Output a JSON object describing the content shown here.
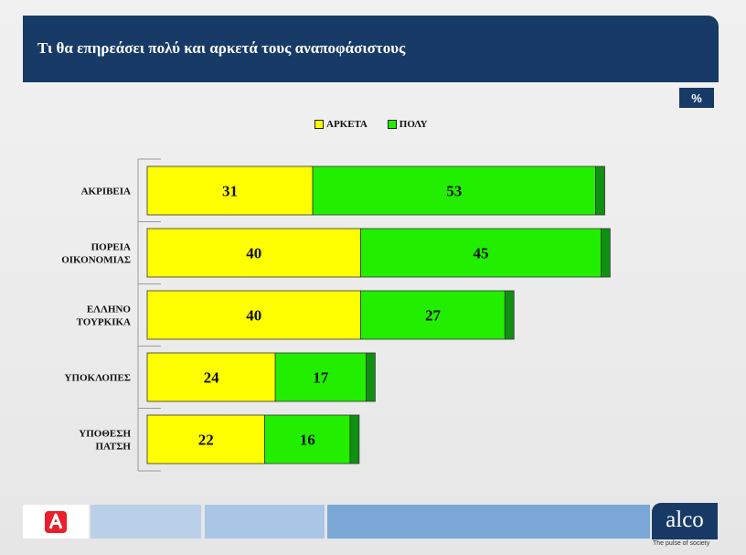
{
  "header": {
    "title": "Τι θα επηρεάσει πολύ και αρκετά τους αναποφάσιστους"
  },
  "unit_badge": "%",
  "colors": {
    "header_bg": "#173a66",
    "arketa": "#ffff00",
    "poly": "#22ee00",
    "remainder": "#109010"
  },
  "chart_data": {
    "type": "bar",
    "orientation": "horizontal",
    "stacked": true,
    "categories": [
      [
        "ΑΚΡΙΒΕΙΑ"
      ],
      [
        "ΠΟΡΕΙΑ",
        "ΟΙΚΟΝΟΜΙΑΣ"
      ],
      [
        "ΕΛΛΗΝΟ",
        "ΤΟΥΡΚΙΚΑ"
      ],
      [
        "ΥΠΟΚΛΟΠΕΣ"
      ],
      [
        "ΥΠΟΘΕΣΗ",
        "ΠΑΤΣΗ"
      ]
    ],
    "series": [
      {
        "name": "ΑΡΚΕΤΑ",
        "values": [
          31,
          40,
          40,
          24,
          22
        ]
      },
      {
        "name": "ΠΟΛΥ",
        "values": [
          53,
          45,
          27,
          17,
          16
        ]
      }
    ],
    "remainder_value": 1.7,
    "xlim": [
      0,
      100
    ],
    "legend_position": "top",
    "grid": false,
    "title": "",
    "xlabel": "",
    "ylabel": ""
  },
  "footer": {
    "alco_logo_text": "alco",
    "alco_tagline": "The pulse of society",
    "segments": [
      {
        "color": "#b9d0e8"
      },
      {
        "color": "#a9c6e6"
      },
      {
        "color": "#7ba7d6"
      }
    ]
  }
}
